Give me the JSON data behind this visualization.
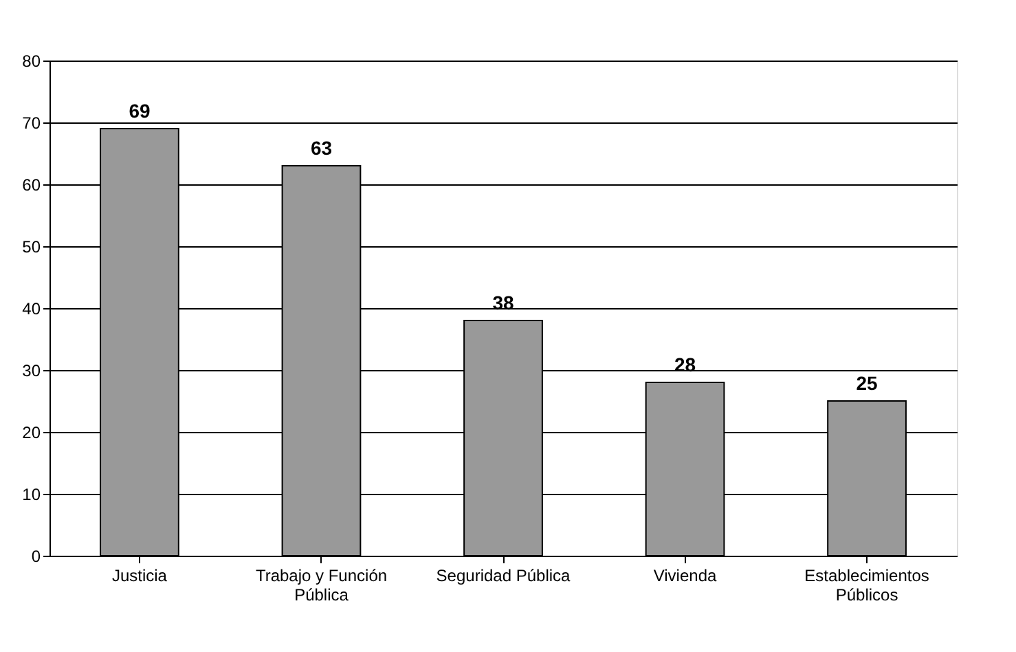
{
  "chart_data": {
    "type": "bar",
    "categories": [
      "Justicia",
      "Trabajo y Función Pública",
      "Seguridad Pública",
      "Vivienda",
      "Establecimientos Públicos"
    ],
    "values": [
      69,
      63,
      38,
      28,
      25
    ],
    "color": "#999999",
    "ylim": [
      0,
      80
    ],
    "yticks": [
      0,
      10,
      20,
      30,
      40,
      50,
      60,
      70,
      80
    ],
    "grid": "y",
    "data_labels": true
  }
}
